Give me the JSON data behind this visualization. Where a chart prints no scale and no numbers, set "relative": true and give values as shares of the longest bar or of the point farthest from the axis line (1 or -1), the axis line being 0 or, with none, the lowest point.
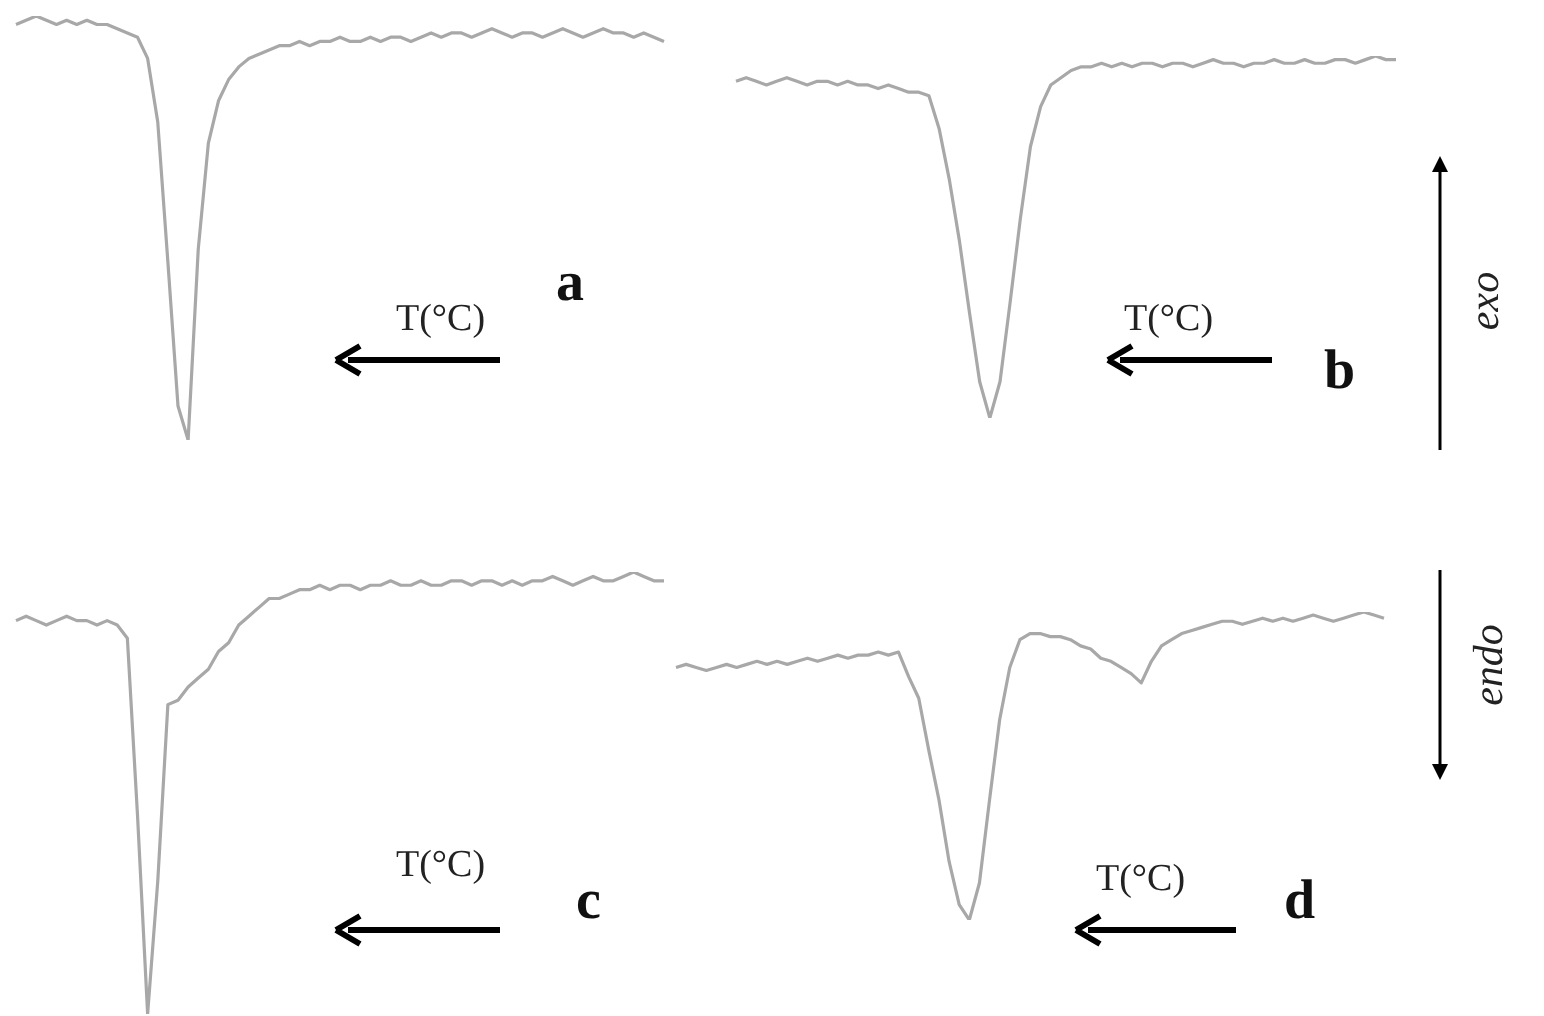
{
  "chart_data": [
    {
      "type": "line",
      "relative": true,
      "xlabel": "T(°C)",
      "annotations": [
        "a"
      ],
      "legend": false,
      "marker": "none",
      "categories": [
        null,
        null,
        null,
        null,
        null,
        null,
        null,
        null,
        null,
        null,
        null,
        null,
        null,
        null,
        null,
        null,
        null,
        null,
        null,
        null,
        null,
        null,
        null,
        null,
        null,
        null,
        null,
        null,
        null,
        null,
        null,
        null,
        null,
        null,
        null,
        null,
        null,
        null,
        null,
        null,
        null,
        null,
        null,
        null,
        null,
        null,
        null,
        null,
        null,
        null,
        null,
        null,
        null,
        null,
        null,
        null,
        null,
        null,
        null,
        null,
        null,
        null,
        null,
        null,
        null
      ],
      "series": [
        {
          "color": "#a8a8a8",
          "values": [
            0.98,
            0.99,
            1,
            0.99,
            0.98,
            0.99,
            0.98,
            0.99,
            0.98,
            0.98,
            0.97,
            0.96,
            0.95,
            0.9,
            0.75,
            0.42,
            0.08,
            0,
            0.45,
            0.7,
            0.8,
            0.85,
            0.88,
            0.9,
            0.91,
            0.92,
            0.93,
            0.93,
            0.94,
            0.93,
            0.94,
            0.94,
            0.95,
            0.94,
            0.94,
            0.95,
            0.94,
            0.95,
            0.95,
            0.94,
            0.95,
            0.96,
            0.95,
            0.96,
            0.96,
            0.95,
            0.96,
            0.97,
            0.96,
            0.95,
            0.96,
            0.96,
            0.95,
            0.96,
            0.97,
            0.96,
            0.95,
            0.96,
            0.97,
            0.96,
            0.96,
            0.95,
            0.96,
            0.95,
            0.94
          ]
        }
      ]
    },
    {
      "type": "line",
      "relative": true,
      "xlabel": "T(°C)",
      "annotations": [
        "b",
        "exo"
      ],
      "legend": false,
      "marker": "none",
      "categories": [
        null,
        null,
        null,
        null,
        null,
        null,
        null,
        null,
        null,
        null,
        null,
        null,
        null,
        null,
        null,
        null,
        null,
        null,
        null,
        null,
        null,
        null,
        null,
        null,
        null,
        null,
        null,
        null,
        null,
        null,
        null,
        null,
        null,
        null,
        null,
        null,
        null,
        null,
        null,
        null,
        null,
        null,
        null,
        null,
        null,
        null,
        null,
        null,
        null,
        null,
        null,
        null,
        null,
        null,
        null,
        null,
        null,
        null,
        null,
        null,
        null,
        null,
        null,
        null,
        null,
        null
      ],
      "series": [
        {
          "color": "#a8a8a8",
          "values": [
            0.93,
            0.94,
            0.93,
            0.92,
            0.93,
            0.94,
            0.93,
            0.92,
            0.93,
            0.93,
            0.92,
            0.93,
            0.92,
            0.92,
            0.91,
            0.92,
            0.91,
            0.9,
            0.9,
            0.89,
            0.8,
            0.66,
            0.49,
            0.29,
            0.1,
            0,
            0.1,
            0.32,
            0.55,
            0.75,
            0.86,
            0.92,
            0.94,
            0.96,
            0.97,
            0.97,
            0.98,
            0.97,
            0.98,
            0.97,
            0.98,
            0.98,
            0.97,
            0.98,
            0.98,
            0.97,
            0.98,
            0.99,
            0.98,
            0.98,
            0.97,
            0.98,
            0.98,
            0.99,
            0.98,
            0.98,
            0.99,
            0.98,
            0.98,
            0.99,
            0.99,
            0.98,
            0.99,
            1,
            0.99,
            0.99
          ]
        }
      ]
    },
    {
      "type": "line",
      "relative": true,
      "xlabel": "T(°C)",
      "annotations": [
        "c"
      ],
      "legend": false,
      "marker": "none",
      "categories": [
        null,
        null,
        null,
        null,
        null,
        null,
        null,
        null,
        null,
        null,
        null,
        null,
        null,
        null,
        null,
        null,
        null,
        null,
        null,
        null,
        null,
        null,
        null,
        null,
        null,
        null,
        null,
        null,
        null,
        null,
        null,
        null,
        null,
        null,
        null,
        null,
        null,
        null,
        null,
        null,
        null,
        null,
        null,
        null,
        null,
        null,
        null,
        null,
        null,
        null,
        null,
        null,
        null,
        null,
        null,
        null,
        null,
        null,
        null,
        null,
        null,
        null,
        null,
        null,
        null
      ],
      "series": [
        {
          "color": "#a8a8a8",
          "values": [
            0.89,
            0.9,
            0.89,
            0.88,
            0.89,
            0.9,
            0.89,
            0.89,
            0.88,
            0.89,
            0.88,
            0.85,
            0.45,
            0,
            0.3,
            0.7,
            0.71,
            0.74,
            0.76,
            0.78,
            0.82,
            0.84,
            0.88,
            0.9,
            0.92,
            0.94,
            0.94,
            0.95,
            0.96,
            0.96,
            0.97,
            0.96,
            0.97,
            0.97,
            0.96,
            0.97,
            0.97,
            0.98,
            0.97,
            0.97,
            0.98,
            0.97,
            0.97,
            0.98,
            0.98,
            0.97,
            0.98,
            0.98,
            0.97,
            0.98,
            0.97,
            0.98,
            0.98,
            0.99,
            0.98,
            0.97,
            0.98,
            0.99,
            0.98,
            0.98,
            0.99,
            1,
            0.99,
            0.98,
            0.98
          ]
        }
      ]
    },
    {
      "type": "line",
      "relative": true,
      "xlabel": "T(°C)",
      "annotations": [
        "d",
        "endo"
      ],
      "legend": false,
      "marker": "none",
      "categories": [
        null,
        null,
        null,
        null,
        null,
        null,
        null,
        null,
        null,
        null,
        null,
        null,
        null,
        null,
        null,
        null,
        null,
        null,
        null,
        null,
        null,
        null,
        null,
        null,
        null,
        null,
        null,
        null,
        null,
        null,
        null,
        null,
        null,
        null,
        null,
        null,
        null,
        null,
        null,
        null,
        null,
        null,
        null,
        null,
        null,
        null,
        null,
        null,
        null,
        null,
        null,
        null,
        null,
        null,
        null,
        null,
        null,
        null,
        null,
        null,
        null,
        null,
        null,
        null,
        null,
        null,
        null,
        null,
        null,
        null,
        null
      ],
      "series": [
        {
          "color": "#a8a8a8",
          "values": [
            0.82,
            0.83,
            0.82,
            0.81,
            0.82,
            0.83,
            0.82,
            0.83,
            0.84,
            0.83,
            0.84,
            0.83,
            0.84,
            0.85,
            0.84,
            0.85,
            0.86,
            0.85,
            0.86,
            0.86,
            0.87,
            0.86,
            0.87,
            0.79,
            0.72,
            0.55,
            0.39,
            0.19,
            0.05,
            0,
            0.12,
            0.39,
            0.65,
            0.82,
            0.91,
            0.93,
            0.93,
            0.92,
            0.92,
            0.91,
            0.89,
            0.88,
            0.85,
            0.84,
            0.82,
            0.8,
            0.77,
            0.84,
            0.89,
            0.91,
            0.93,
            0.94,
            0.95,
            0.96,
            0.97,
            0.97,
            0.96,
            0.97,
            0.98,
            0.97,
            0.98,
            0.97,
            0.98,
            0.99,
            0.98,
            0.97,
            0.98,
            0.99,
            1,
            0.99,
            0.98
          ]
        }
      ]
    }
  ]
}
